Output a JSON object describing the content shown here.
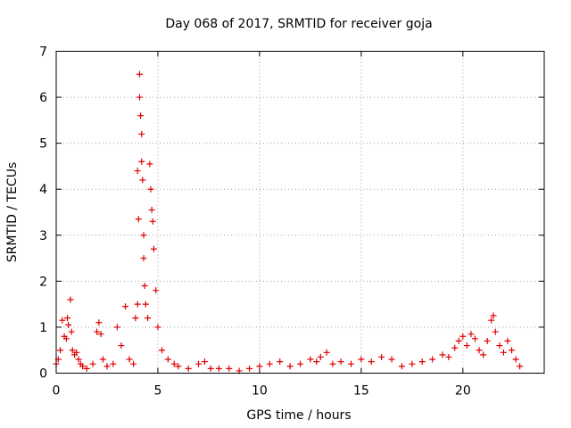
{
  "chart_data": {
    "type": "scatter",
    "title": "Day 068 of 2017, SRMTID for receiver goja",
    "xlabel": "GPS time / hours",
    "ylabel": "SRMTID / TECUs",
    "xlim": [
      0,
      24
    ],
    "ylim": [
      0,
      7
    ],
    "xticks": [
      0,
      5,
      10,
      15,
      20
    ],
    "yticks": [
      0,
      1,
      2,
      3,
      4,
      5,
      6,
      7
    ],
    "grid": true,
    "marker": "+",
    "series": [
      {
        "name": "SRMTID",
        "color": "#e00000",
        "x": [
          0.0,
          0.1,
          0.2,
          0.3,
          0.4,
          0.5,
          0.55,
          0.6,
          0.7,
          0.75,
          0.8,
          0.9,
          1.0,
          1.1,
          1.2,
          1.3,
          1.5,
          1.8,
          2.0,
          2.1,
          2.2,
          2.3,
          2.5,
          2.8,
          3.0,
          3.2,
          3.4,
          3.6,
          3.8,
          3.9,
          4.0,
          4.0,
          4.05,
          4.1,
          4.1,
          4.15,
          4.2,
          4.2,
          4.25,
          4.3,
          4.3,
          4.35,
          4.4,
          4.5,
          4.6,
          4.65,
          4.7,
          4.75,
          4.8,
          4.9,
          5.0,
          5.2,
          5.5,
          5.8,
          6.0,
          6.5,
          7.0,
          7.3,
          7.6,
          8.0,
          8.5,
          9.0,
          9.5,
          10.0,
          10.5,
          11.0,
          11.5,
          12.0,
          12.5,
          12.8,
          13.0,
          13.3,
          13.6,
          14.0,
          14.5,
          15.0,
          15.5,
          16.0,
          16.5,
          17.0,
          17.5,
          18.0,
          18.5,
          19.0,
          19.3,
          19.6,
          19.8,
          20.0,
          20.2,
          20.4,
          20.6,
          20.8,
          21.0,
          21.2,
          21.4,
          21.5,
          21.6,
          21.8,
          22.0,
          22.2,
          22.4,
          22.6,
          22.8
        ],
        "values": [
          0.2,
          0.3,
          0.5,
          1.15,
          0.8,
          0.75,
          1.2,
          1.05,
          1.6,
          0.9,
          0.5,
          0.4,
          0.45,
          0.3,
          0.2,
          0.15,
          0.1,
          0.2,
          0.9,
          1.1,
          0.85,
          0.3,
          0.15,
          0.2,
          1.0,
          0.6,
          1.45,
          0.3,
          0.2,
          1.2,
          1.5,
          4.4,
          3.35,
          6.5,
          6.0,
          5.6,
          5.2,
          4.6,
          4.2,
          3.0,
          2.5,
          1.9,
          1.5,
          1.2,
          4.55,
          4.0,
          3.55,
          3.3,
          2.7,
          1.8,
          1.0,
          0.5,
          0.3,
          0.2,
          0.15,
          0.1,
          0.2,
          0.25,
          0.1,
          0.1,
          0.1,
          0.05,
          0.1,
          0.15,
          0.2,
          0.25,
          0.15,
          0.2,
          0.3,
          0.25,
          0.35,
          0.45,
          0.2,
          0.25,
          0.2,
          0.3,
          0.25,
          0.35,
          0.3,
          0.15,
          0.2,
          0.25,
          0.3,
          0.4,
          0.35,
          0.55,
          0.7,
          0.8,
          0.6,
          0.85,
          0.75,
          0.5,
          0.4,
          0.7,
          1.15,
          1.25,
          0.9,
          0.6,
          0.45,
          0.7,
          0.5,
          0.3,
          0.15
        ]
      }
    ]
  }
}
